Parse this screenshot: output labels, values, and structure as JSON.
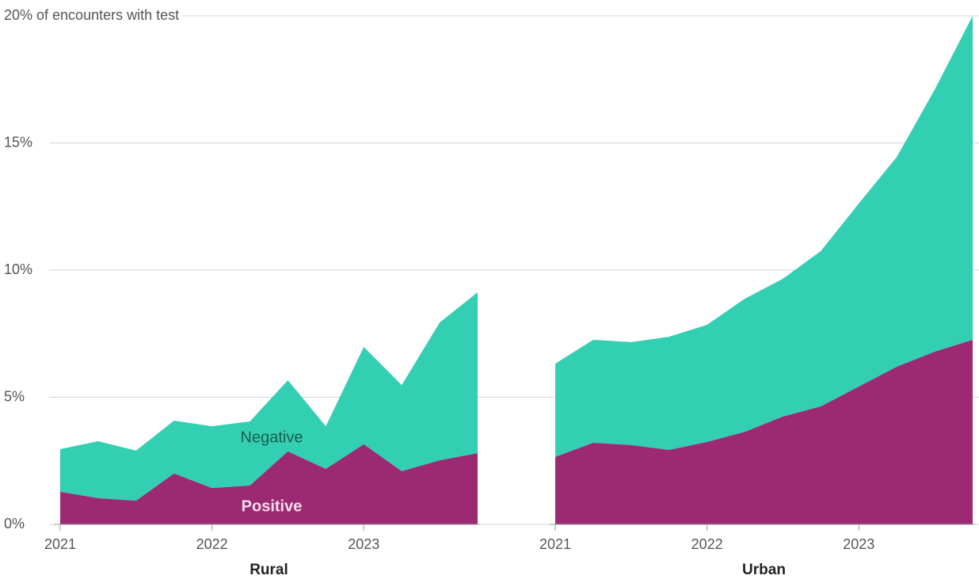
{
  "chart_data": {
    "type": "area",
    "stacked": true,
    "grid": true,
    "ylim": [
      0,
      20
    ],
    "yticks": [
      {
        "value": 0,
        "label": "0%"
      },
      {
        "value": 5,
        "label": "5%"
      },
      {
        "value": 10,
        "label": "10%"
      },
      {
        "value": 15,
        "label": "15%"
      },
      {
        "value": 20,
        "label": "20% of encounters with test"
      }
    ],
    "series": [
      {
        "name": "Positive",
        "color": "#9b2a72"
      },
      {
        "name": "Negative",
        "color": "#33cfb2"
      }
    ],
    "panels": [
      {
        "title": "Rural",
        "x": [
          2021,
          2021.25,
          2021.5,
          2021.75,
          2022,
          2022.25,
          2022.5,
          2022.75,
          2023,
          2023.25,
          2023.5,
          2023.75
        ],
        "xlim": [
          2021,
          2023.75
        ],
        "xticks": [
          2021,
          2022,
          2023
        ],
        "values": [
          [
            1.28,
            1.03,
            0.93,
            2.0,
            1.43,
            1.53,
            2.87,
            2.18,
            3.15,
            2.09,
            2.52,
            2.8
          ],
          [
            1.68,
            2.24,
            1.97,
            2.08,
            2.43,
            2.52,
            2.8,
            1.68,
            3.83,
            3.39,
            5.42,
            6.33
          ]
        ]
      },
      {
        "title": "Urban",
        "x": [
          2021,
          2021.25,
          2021.5,
          2021.75,
          2022,
          2022.25,
          2022.5,
          2022.75,
          2023,
          2023.25,
          2023.5,
          2023.75
        ],
        "xlim": [
          2021,
          2023.75
        ],
        "xticks": [
          2021,
          2022,
          2023
        ],
        "values": [
          [
            2.65,
            3.21,
            3.12,
            2.93,
            3.24,
            3.64,
            4.24,
            4.64,
            5.42,
            6.2,
            6.79,
            7.26
          ],
          [
            3.67,
            4.05,
            4.05,
            4.45,
            4.61,
            5.24,
            5.42,
            6.11,
            7.2,
            8.25,
            10.31,
            12.74
          ]
        ]
      }
    ]
  }
}
